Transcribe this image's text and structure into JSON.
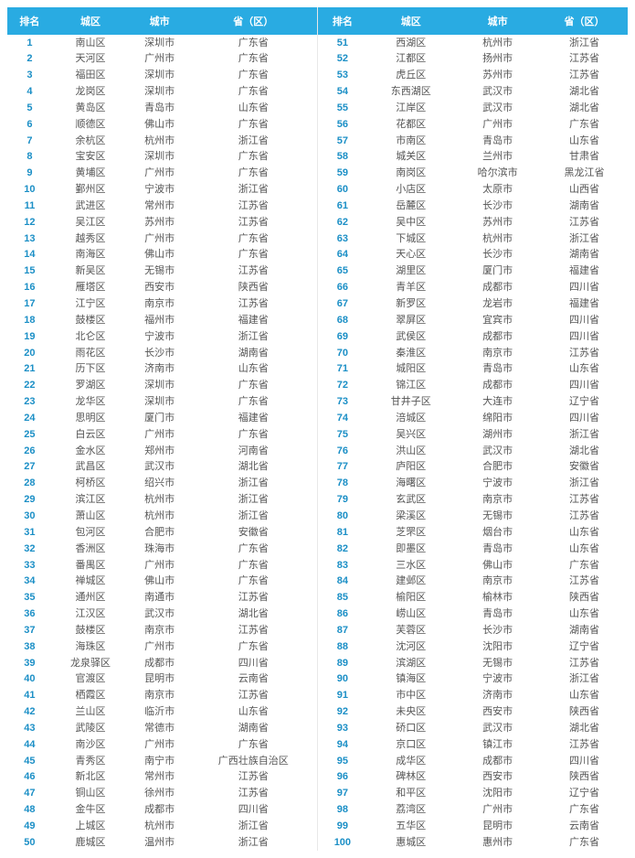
{
  "header": {
    "rank": "排名",
    "district": "城区",
    "city": "城市",
    "province": "省（区）"
  },
  "style": {
    "header_bg": "#29abe2",
    "header_fg": "#ffffff",
    "rank_color": "#1b8fc6",
    "cell_color": "#555555",
    "font_size_header": 11,
    "font_size_cell": 11,
    "font_family": "Microsoft YaHei"
  },
  "rows": [
    {
      "rank": 1,
      "district": "南山区",
      "city": "深圳市",
      "province": "广东省"
    },
    {
      "rank": 2,
      "district": "天河区",
      "city": "广州市",
      "province": "广东省"
    },
    {
      "rank": 3,
      "district": "福田区",
      "city": "深圳市",
      "province": "广东省"
    },
    {
      "rank": 4,
      "district": "龙岗区",
      "city": "深圳市",
      "province": "广东省"
    },
    {
      "rank": 5,
      "district": "黄岛区",
      "city": "青岛市",
      "province": "山东省"
    },
    {
      "rank": 6,
      "district": "顺德区",
      "city": "佛山市",
      "province": "广东省"
    },
    {
      "rank": 7,
      "district": "余杭区",
      "city": "杭州市",
      "province": "浙江省"
    },
    {
      "rank": 8,
      "district": "宝安区",
      "city": "深圳市",
      "province": "广东省"
    },
    {
      "rank": 9,
      "district": "黄埔区",
      "city": "广州市",
      "province": "广东省"
    },
    {
      "rank": 10,
      "district": "鄞州区",
      "city": "宁波市",
      "province": "浙江省"
    },
    {
      "rank": 11,
      "district": "武进区",
      "city": "常州市",
      "province": "江苏省"
    },
    {
      "rank": 12,
      "district": "吴江区",
      "city": "苏州市",
      "province": "江苏省"
    },
    {
      "rank": 13,
      "district": "越秀区",
      "city": "广州市",
      "province": "广东省"
    },
    {
      "rank": 14,
      "district": "南海区",
      "city": "佛山市",
      "province": "广东省"
    },
    {
      "rank": 15,
      "district": "新吴区",
      "city": "无锡市",
      "province": "江苏省"
    },
    {
      "rank": 16,
      "district": "雁塔区",
      "city": "西安市",
      "province": "陕西省"
    },
    {
      "rank": 17,
      "district": "江宁区",
      "city": "南京市",
      "province": "江苏省"
    },
    {
      "rank": 18,
      "district": "鼓楼区",
      "city": "福州市",
      "province": "福建省"
    },
    {
      "rank": 19,
      "district": "北仑区",
      "city": "宁波市",
      "province": "浙江省"
    },
    {
      "rank": 20,
      "district": "雨花区",
      "city": "长沙市",
      "province": "湖南省"
    },
    {
      "rank": 21,
      "district": "历下区",
      "city": "济南市",
      "province": "山东省"
    },
    {
      "rank": 22,
      "district": "罗湖区",
      "city": "深圳市",
      "province": "广东省"
    },
    {
      "rank": 23,
      "district": "龙华区",
      "city": "深圳市",
      "province": "广东省"
    },
    {
      "rank": 24,
      "district": "思明区",
      "city": "厦门市",
      "province": "福建省"
    },
    {
      "rank": 25,
      "district": "白云区",
      "city": "广州市",
      "province": "广东省"
    },
    {
      "rank": 26,
      "district": "金水区",
      "city": "郑州市",
      "province": "河南省"
    },
    {
      "rank": 27,
      "district": "武昌区",
      "city": "武汉市",
      "province": "湖北省"
    },
    {
      "rank": 28,
      "district": "柯桥区",
      "city": "绍兴市",
      "province": "浙江省"
    },
    {
      "rank": 29,
      "district": "滨江区",
      "city": "杭州市",
      "province": "浙江省"
    },
    {
      "rank": 30,
      "district": "萧山区",
      "city": "杭州市",
      "province": "浙江省"
    },
    {
      "rank": 31,
      "district": "包河区",
      "city": "合肥市",
      "province": "安徽省"
    },
    {
      "rank": 32,
      "district": "香洲区",
      "city": "珠海市",
      "province": "广东省"
    },
    {
      "rank": 33,
      "district": "番禺区",
      "city": "广州市",
      "province": "广东省"
    },
    {
      "rank": 34,
      "district": "禅城区",
      "city": "佛山市",
      "province": "广东省"
    },
    {
      "rank": 35,
      "district": "通州区",
      "city": "南通市",
      "province": "江苏省"
    },
    {
      "rank": 36,
      "district": "江汉区",
      "city": "武汉市",
      "province": "湖北省"
    },
    {
      "rank": 37,
      "district": "鼓楼区",
      "city": "南京市",
      "province": "江苏省"
    },
    {
      "rank": 38,
      "district": "海珠区",
      "city": "广州市",
      "province": "广东省"
    },
    {
      "rank": 39,
      "district": "龙泉驿区",
      "city": "成都市",
      "province": "四川省"
    },
    {
      "rank": 40,
      "district": "官渡区",
      "city": "昆明市",
      "province": "云南省"
    },
    {
      "rank": 41,
      "district": "栖霞区",
      "city": "南京市",
      "province": "江苏省"
    },
    {
      "rank": 42,
      "district": "兰山区",
      "city": "临沂市",
      "province": "山东省"
    },
    {
      "rank": 43,
      "district": "武陵区",
      "city": "常德市",
      "province": "湖南省"
    },
    {
      "rank": 44,
      "district": "南沙区",
      "city": "广州市",
      "province": "广东省"
    },
    {
      "rank": 45,
      "district": "青秀区",
      "city": "南宁市",
      "province": "广西壮族自治区"
    },
    {
      "rank": 46,
      "district": "新北区",
      "city": "常州市",
      "province": "江苏省"
    },
    {
      "rank": 47,
      "district": "铜山区",
      "city": "徐州市",
      "province": "江苏省"
    },
    {
      "rank": 48,
      "district": "金牛区",
      "city": "成都市",
      "province": "四川省"
    },
    {
      "rank": 49,
      "district": "上城区",
      "city": "杭州市",
      "province": "浙江省"
    },
    {
      "rank": 50,
      "district": "鹿城区",
      "city": "温州市",
      "province": "浙江省"
    },
    {
      "rank": 51,
      "district": "西湖区",
      "city": "杭州市",
      "province": "浙江省"
    },
    {
      "rank": 52,
      "district": "江都区",
      "city": "扬州市",
      "province": "江苏省"
    },
    {
      "rank": 53,
      "district": "虎丘区",
      "city": "苏州市",
      "province": "江苏省"
    },
    {
      "rank": 54,
      "district": "东西湖区",
      "city": "武汉市",
      "province": "湖北省"
    },
    {
      "rank": 55,
      "district": "江岸区",
      "city": "武汉市",
      "province": "湖北省"
    },
    {
      "rank": 56,
      "district": "花都区",
      "city": "广州市",
      "province": "广东省"
    },
    {
      "rank": 57,
      "district": "市南区",
      "city": "青岛市",
      "province": "山东省"
    },
    {
      "rank": 58,
      "district": "城关区",
      "city": "兰州市",
      "province": "甘肃省"
    },
    {
      "rank": 59,
      "district": "南岗区",
      "city": "哈尔滨市",
      "province": "黑龙江省"
    },
    {
      "rank": 60,
      "district": "小店区",
      "city": "太原市",
      "province": "山西省"
    },
    {
      "rank": 61,
      "district": "岳麓区",
      "city": "长沙市",
      "province": "湖南省"
    },
    {
      "rank": 62,
      "district": "吴中区",
      "city": "苏州市",
      "province": "江苏省"
    },
    {
      "rank": 63,
      "district": "下城区",
      "city": "杭州市",
      "province": "浙江省"
    },
    {
      "rank": 64,
      "district": "天心区",
      "city": "长沙市",
      "province": "湖南省"
    },
    {
      "rank": 65,
      "district": "湖里区",
      "city": "厦门市",
      "province": "福建省"
    },
    {
      "rank": 66,
      "district": "青羊区",
      "city": "成都市",
      "province": "四川省"
    },
    {
      "rank": 67,
      "district": "新罗区",
      "city": "龙岩市",
      "province": "福建省"
    },
    {
      "rank": 68,
      "district": "翠屏区",
      "city": "宜宾市",
      "province": "四川省"
    },
    {
      "rank": 69,
      "district": "武侯区",
      "city": "成都市",
      "province": "四川省"
    },
    {
      "rank": 70,
      "district": "秦淮区",
      "city": "南京市",
      "province": "江苏省"
    },
    {
      "rank": 71,
      "district": "城阳区",
      "city": "青岛市",
      "province": "山东省"
    },
    {
      "rank": 72,
      "district": "锦江区",
      "city": "成都市",
      "province": "四川省"
    },
    {
      "rank": 73,
      "district": "甘井子区",
      "city": "大连市",
      "province": "辽宁省"
    },
    {
      "rank": 74,
      "district": "涪城区",
      "city": "绵阳市",
      "province": "四川省"
    },
    {
      "rank": 75,
      "district": "吴兴区",
      "city": "湖州市",
      "province": "浙江省"
    },
    {
      "rank": 76,
      "district": "洪山区",
      "city": "武汉市",
      "province": "湖北省"
    },
    {
      "rank": 77,
      "district": "庐阳区",
      "city": "合肥市",
      "province": "安徽省"
    },
    {
      "rank": 78,
      "district": "海曙区",
      "city": "宁波市",
      "province": "浙江省"
    },
    {
      "rank": 79,
      "district": "玄武区",
      "city": "南京市",
      "province": "江苏省"
    },
    {
      "rank": 80,
      "district": "梁溪区",
      "city": "无锡市",
      "province": "江苏省"
    },
    {
      "rank": 81,
      "district": "芝罘区",
      "city": "烟台市",
      "province": "山东省"
    },
    {
      "rank": 82,
      "district": "即墨区",
      "city": "青岛市",
      "province": "山东省"
    },
    {
      "rank": 83,
      "district": "三水区",
      "city": "佛山市",
      "province": "广东省"
    },
    {
      "rank": 84,
      "district": "建邺区",
      "city": "南京市",
      "province": "江苏省"
    },
    {
      "rank": 85,
      "district": "榆阳区",
      "city": "榆林市",
      "province": "陕西省"
    },
    {
      "rank": 86,
      "district": "崂山区",
      "city": "青岛市",
      "province": "山东省"
    },
    {
      "rank": 87,
      "district": "芙蓉区",
      "city": "长沙市",
      "province": "湖南省"
    },
    {
      "rank": 88,
      "district": "沈河区",
      "city": "沈阳市",
      "province": "辽宁省"
    },
    {
      "rank": 89,
      "district": "滨湖区",
      "city": "无锡市",
      "province": "江苏省"
    },
    {
      "rank": 90,
      "district": "镇海区",
      "city": "宁波市",
      "province": "浙江省"
    },
    {
      "rank": 91,
      "district": "市中区",
      "city": "济南市",
      "province": "山东省"
    },
    {
      "rank": 92,
      "district": "未央区",
      "city": "西安市",
      "province": "陕西省"
    },
    {
      "rank": 93,
      "district": "硚口区",
      "city": "武汉市",
      "province": "湖北省"
    },
    {
      "rank": 94,
      "district": "京口区",
      "city": "镇江市",
      "province": "江苏省"
    },
    {
      "rank": 95,
      "district": "成华区",
      "city": "成都市",
      "province": "四川省"
    },
    {
      "rank": 96,
      "district": "碑林区",
      "city": "西安市",
      "province": "陕西省"
    },
    {
      "rank": 97,
      "district": "和平区",
      "city": "沈阳市",
      "province": "辽宁省"
    },
    {
      "rank": 98,
      "district": "荔湾区",
      "city": "广州市",
      "province": "广东省"
    },
    {
      "rank": 99,
      "district": "五华区",
      "city": "昆明市",
      "province": "云南省"
    },
    {
      "rank": 100,
      "district": "惠城区",
      "city": "惠州市",
      "province": "广东省"
    }
  ]
}
